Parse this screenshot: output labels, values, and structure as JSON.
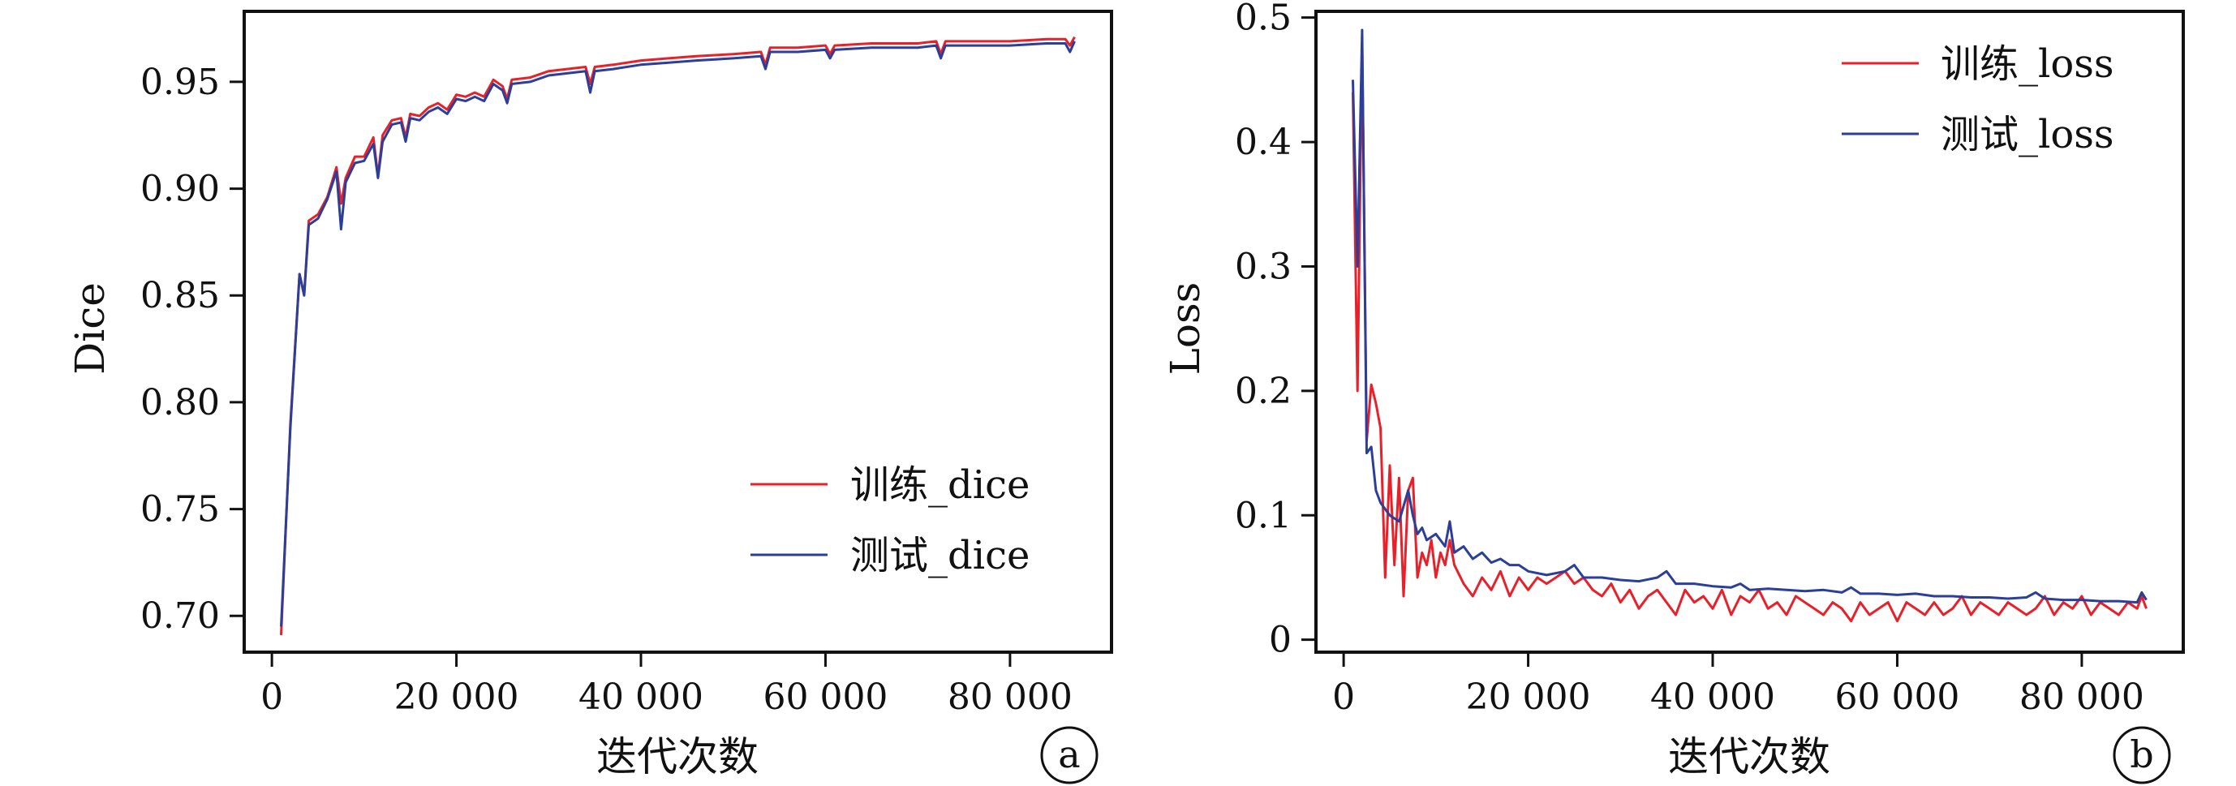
{
  "chart_data": [
    {
      "panel": "a",
      "type": "line",
      "xlabel": "迭代次数",
      "ylabel": "Dice",
      "xlim": [
        -3000,
        91000
      ],
      "ylim": [
        0.683,
        0.983
      ],
      "xticks": [
        0,
        20000,
        40000,
        60000,
        80000
      ],
      "xtick_labels": [
        "0",
        "20 000",
        "40 000",
        "60 000",
        "80 000"
      ],
      "yticks": [
        0.7,
        0.75,
        0.8,
        0.85,
        0.9,
        0.95
      ],
      "ytick_labels": [
        "0.70",
        "0.75",
        "0.80",
        "0.85",
        "0.90",
        "0.95"
      ],
      "legend_position": "lower-right",
      "grid": false,
      "series": [
        {
          "name": "训练_dice",
          "color": "#e8202a",
          "x": [
            1000,
            2000,
            3000,
            3500,
            4000,
            5000,
            6000,
            7000,
            7500,
            8000,
            9000,
            10000,
            11000,
            11500,
            12000,
            13000,
            14000,
            14500,
            15000,
            16000,
            17000,
            18000,
            19000,
            20000,
            21000,
            22000,
            23000,
            24000,
            25000,
            25500,
            26000,
            28000,
            30000,
            32000,
            34000,
            34500,
            35000,
            37000,
            40000,
            43000,
            46000,
            50000,
            53000,
            53500,
            54000,
            57000,
            60000,
            60500,
            61000,
            65000,
            70000,
            72000,
            72500,
            73000,
            77000,
            80000,
            84000,
            86000,
            86500,
            87000
          ],
          "values": [
            0.691,
            0.79,
            0.86,
            0.85,
            0.885,
            0.888,
            0.896,
            0.91,
            0.893,
            0.905,
            0.915,
            0.915,
            0.924,
            0.906,
            0.925,
            0.932,
            0.933,
            0.924,
            0.935,
            0.934,
            0.938,
            0.94,
            0.937,
            0.944,
            0.943,
            0.945,
            0.943,
            0.951,
            0.948,
            0.942,
            0.951,
            0.952,
            0.955,
            0.956,
            0.957,
            0.949,
            0.957,
            0.958,
            0.96,
            0.961,
            0.962,
            0.963,
            0.964,
            0.958,
            0.966,
            0.966,
            0.967,
            0.963,
            0.967,
            0.968,
            0.968,
            0.969,
            0.963,
            0.969,
            0.969,
            0.969,
            0.97,
            0.97,
            0.967,
            0.971
          ]
        },
        {
          "name": "测试_dice",
          "color": "#2b3f9a",
          "x": [
            1000,
            2000,
            3000,
            3500,
            4000,
            5000,
            6000,
            7000,
            7500,
            8000,
            9000,
            10000,
            11000,
            11500,
            12000,
            13000,
            14000,
            14500,
            15000,
            16000,
            17000,
            18000,
            19000,
            20000,
            21000,
            22000,
            23000,
            24000,
            25000,
            25500,
            26000,
            28000,
            30000,
            32000,
            34000,
            34500,
            35000,
            37000,
            40000,
            43000,
            46000,
            50000,
            53000,
            53500,
            54000,
            57000,
            60000,
            60500,
            61000,
            65000,
            70000,
            72000,
            72500,
            73000,
            77000,
            80000,
            84000,
            86000,
            86500,
            87000
          ],
          "values": [
            0.695,
            0.788,
            0.86,
            0.85,
            0.883,
            0.886,
            0.895,
            0.908,
            0.881,
            0.903,
            0.912,
            0.913,
            0.921,
            0.905,
            0.922,
            0.93,
            0.931,
            0.922,
            0.933,
            0.932,
            0.936,
            0.938,
            0.935,
            0.942,
            0.941,
            0.943,
            0.941,
            0.949,
            0.946,
            0.94,
            0.949,
            0.95,
            0.953,
            0.954,
            0.955,
            0.945,
            0.955,
            0.956,
            0.958,
            0.959,
            0.96,
            0.961,
            0.962,
            0.956,
            0.964,
            0.964,
            0.965,
            0.961,
            0.965,
            0.966,
            0.966,
            0.967,
            0.961,
            0.967,
            0.967,
            0.967,
            0.968,
            0.968,
            0.964,
            0.969
          ]
        }
      ]
    },
    {
      "panel": "b",
      "type": "line",
      "xlabel": "迭代次数",
      "ylabel": "Loss",
      "xlim": [
        -3000,
        91000
      ],
      "ylim": [
        -0.01,
        0.505
      ],
      "xticks": [
        0,
        20000,
        40000,
        60000,
        80000
      ],
      "xtick_labels": [
        "0",
        "20 000",
        "40 000",
        "60 000",
        "80 000"
      ],
      "yticks": [
        0,
        0.1,
        0.2,
        0.3,
        0.4,
        0.5
      ],
      "ytick_labels": [
        "0",
        "0.1",
        "0.2",
        "0.3",
        "0.4",
        "0.5"
      ],
      "legend_position": "top-right",
      "grid": false,
      "series": [
        {
          "name": "训练_loss",
          "color": "#e8202a",
          "x": [
            1000,
            1500,
            2000,
            2500,
            3000,
            3500,
            4000,
            4500,
            5000,
            5500,
            6000,
            6500,
            7000,
            7500,
            8000,
            8500,
            9000,
            9500,
            10000,
            10500,
            11000,
            11500,
            12000,
            13000,
            14000,
            15000,
            16000,
            17000,
            18000,
            19000,
            20000,
            21000,
            22000,
            23000,
            24000,
            25000,
            26000,
            27000,
            28000,
            29000,
            30000,
            31000,
            32000,
            33000,
            34000,
            35000,
            36000,
            37000,
            38000,
            39000,
            40000,
            41000,
            42000,
            43000,
            44000,
            45000,
            46000,
            47000,
            48000,
            49000,
            50000,
            51000,
            52000,
            53000,
            54000,
            55000,
            56000,
            57000,
            58000,
            59000,
            60000,
            61000,
            62000,
            63000,
            64000,
            65000,
            66000,
            67000,
            68000,
            69000,
            70000,
            71000,
            72000,
            73000,
            74000,
            75000,
            76000,
            77000,
            78000,
            79000,
            80000,
            81000,
            82000,
            83000,
            84000,
            85000,
            86000,
            86500,
            87000
          ],
          "values": [
            0.44,
            0.2,
            0.48,
            0.16,
            0.205,
            0.19,
            0.17,
            0.05,
            0.14,
            0.06,
            0.13,
            0.035,
            0.12,
            0.13,
            0.05,
            0.07,
            0.06,
            0.08,
            0.05,
            0.07,
            0.06,
            0.08,
            0.06,
            0.045,
            0.035,
            0.05,
            0.04,
            0.055,
            0.035,
            0.05,
            0.04,
            0.05,
            0.045,
            0.05,
            0.055,
            0.045,
            0.05,
            0.04,
            0.035,
            0.045,
            0.03,
            0.04,
            0.025,
            0.035,
            0.04,
            0.03,
            0.02,
            0.04,
            0.03,
            0.035,
            0.025,
            0.04,
            0.02,
            0.035,
            0.03,
            0.04,
            0.025,
            0.03,
            0.02,
            0.035,
            0.03,
            0.025,
            0.02,
            0.03,
            0.025,
            0.015,
            0.03,
            0.02,
            0.025,
            0.03,
            0.015,
            0.03,
            0.025,
            0.02,
            0.03,
            0.02,
            0.025,
            0.035,
            0.02,
            0.03,
            0.025,
            0.02,
            0.03,
            0.025,
            0.02,
            0.025,
            0.035,
            0.02,
            0.03,
            0.025,
            0.035,
            0.02,
            0.03,
            0.025,
            0.02,
            0.03,
            0.025,
            0.035,
            0.025
          ]
        },
        {
          "name": "测试_loss",
          "color": "#2b3f9a",
          "x": [
            1000,
            1500,
            2000,
            2500,
            3000,
            3500,
            4000,
            5000,
            6000,
            7000,
            7500,
            8000,
            8500,
            9000,
            10000,
            11000,
            11500,
            12000,
            13000,
            14000,
            15000,
            16000,
            17000,
            18000,
            19000,
            20000,
            22000,
            24000,
            25000,
            26000,
            28000,
            30000,
            32000,
            34000,
            35000,
            36000,
            38000,
            40000,
            42000,
            43000,
            44000,
            46000,
            48000,
            50000,
            52000,
            54000,
            55000,
            56000,
            58000,
            60000,
            62000,
            64000,
            66000,
            68000,
            70000,
            72000,
            74000,
            75000,
            76000,
            78000,
            80000,
            82000,
            84000,
            86000,
            86500,
            87000
          ],
          "values": [
            0.45,
            0.3,
            0.49,
            0.15,
            0.155,
            0.12,
            0.11,
            0.1,
            0.095,
            0.12,
            0.1,
            0.085,
            0.09,
            0.08,
            0.085,
            0.075,
            0.095,
            0.07,
            0.075,
            0.065,
            0.07,
            0.062,
            0.065,
            0.06,
            0.06,
            0.055,
            0.052,
            0.055,
            0.06,
            0.05,
            0.05,
            0.048,
            0.047,
            0.05,
            0.055,
            0.045,
            0.045,
            0.043,
            0.042,
            0.045,
            0.04,
            0.041,
            0.04,
            0.039,
            0.04,
            0.038,
            0.042,
            0.037,
            0.037,
            0.036,
            0.037,
            0.035,
            0.035,
            0.034,
            0.034,
            0.033,
            0.034,
            0.038,
            0.033,
            0.032,
            0.032,
            0.031,
            0.031,
            0.03,
            0.038,
            0.032
          ]
        }
      ]
    }
  ],
  "panels": {
    "a": {
      "letter": "a",
      "legend": [
        "训练_dice",
        "测试_dice"
      ]
    },
    "b": {
      "letter": "b",
      "legend": [
        "训练_loss",
        "测试_loss"
      ]
    }
  }
}
